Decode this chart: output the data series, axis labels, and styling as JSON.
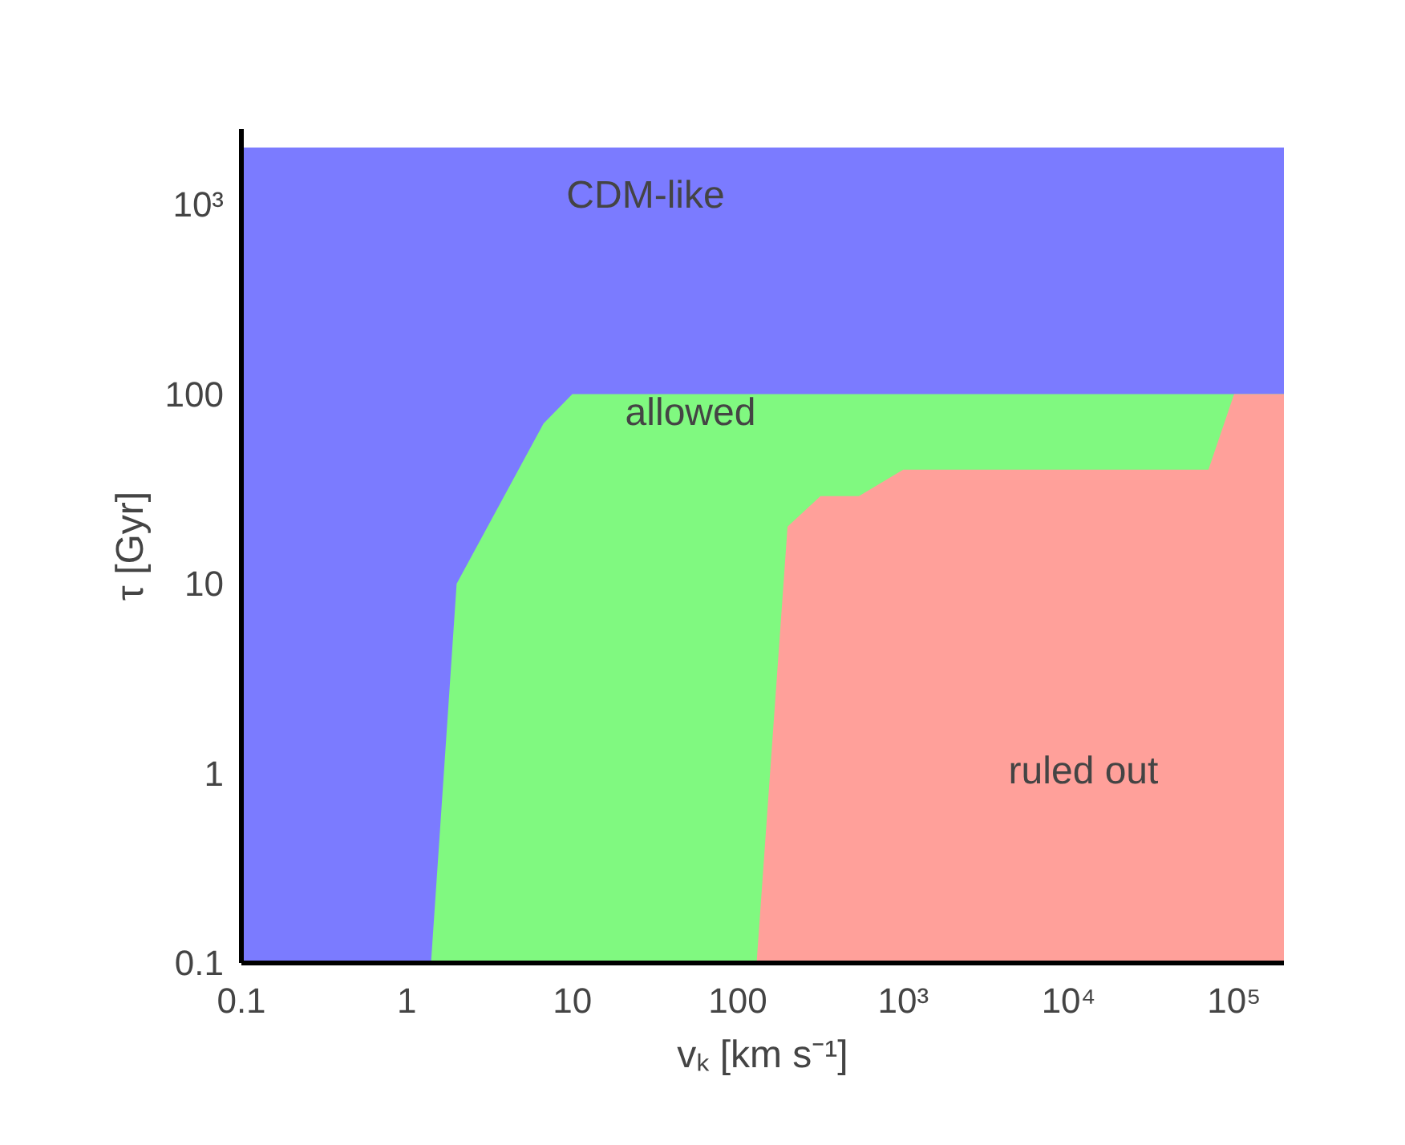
{
  "chart_data": {
    "type": "area",
    "xlabel": "vₖ [km s⁻¹]",
    "ylabel": "τ [Gyr]",
    "log": "xy",
    "x": [
      0.1,
      1.4,
      2,
      6.7,
      10,
      130,
      200,
      316,
      540,
      1000,
      70000,
      100000,
      200000
    ],
    "bands": [
      {
        "axis": "y",
        "from": 0.1,
        "to": 2000,
        "color": "#7b7bff"
      }
    ],
    "series": [
      {
        "color": "#80f980",
        "values": [
          0.1,
          0.1,
          10,
          70,
          100,
          100,
          100,
          100,
          100,
          100,
          100,
          100,
          100
        ]
      },
      {
        "color": "#ffa09a",
        "x": [
          130,
          200,
          316,
          540,
          1000,
          70000,
          100000,
          200000
        ],
        "values": [
          0.1,
          20,
          29,
          29,
          40,
          40,
          100,
          100
        ]
      }
    ],
    "annotations": [
      "CDM-like",
      "allowed",
      "ruled out"
    ],
    "xlim": [
      0.1,
      200000
    ],
    "ylim": [
      0.1,
      2500
    ],
    "xticks": [
      0.1,
      1,
      10,
      100,
      {
        "value": 1000,
        "label": "10³"
      },
      {
        "value": 10000,
        "label": "10⁴"
      },
      {
        "value": 100000,
        "label": "10⁵"
      }
    ],
    "yticks": [
      0.1,
      1,
      10,
      100,
      {
        "value": 1000,
        "label": "10³"
      }
    ]
  }
}
